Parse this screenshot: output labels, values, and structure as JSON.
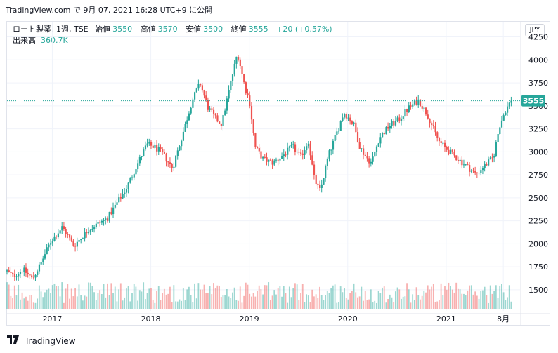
{
  "header": {
    "attribution": "TradingView.com で 9月 07, 2021 16:28 UTC+9 に公開"
  },
  "legend": {
    "symbol": "ロート製薬, 1週, TSE",
    "open_label": "始値",
    "open_value": "3550",
    "high_label": "高値",
    "high_value": "3570",
    "low_label": "安値",
    "low_value": "3500",
    "close_label": "終値",
    "close_value": "3555",
    "change": "+20 (+0.57%)",
    "volume_label": "出来高",
    "volume_value": "360.7K"
  },
  "currency": "JPY",
  "last_price_label": "3555",
  "footer": {
    "brand": "TradingView"
  },
  "colors": {
    "up": "#26a69a",
    "down": "#ef5350",
    "axis_text": "#131722",
    "grid": "#f0f3fa",
    "price_line": "#26a69a"
  },
  "chart_data": {
    "type": "candlestick",
    "interval": "weekly",
    "y_ticks": [
      4250,
      4000,
      3750,
      3500,
      3250,
      3000,
      2750,
      2500,
      2250,
      2000,
      1750,
      1500
    ],
    "ylim": [
      1270,
      4300
    ],
    "x_tick_labels": [
      "2017",
      "2018",
      "2019",
      "2020",
      "2021",
      "8月"
    ],
    "x_tick_positions": [
      0.0,
      1.0,
      2.0,
      3.0,
      4.0,
      4.58
    ],
    "x_range": [
      -0.46,
      4.75
    ],
    "last_price": 3555,
    "path_anchors": [
      [
        -0.46,
        1700
      ],
      [
        -0.4,
        1650
      ],
      [
        -0.3,
        1720
      ],
      [
        -0.2,
        1620
      ],
      [
        -0.12,
        1780
      ],
      [
        -0.02,
        2020
      ],
      [
        0.1,
        2180
      ],
      [
        0.22,
        1980
      ],
      [
        0.36,
        2150
      ],
      [
        0.56,
        2280
      ],
      [
        0.66,
        2450
      ],
      [
        0.76,
        2620
      ],
      [
        0.86,
        2860
      ],
      [
        0.96,
        3080
      ],
      [
        1.04,
        3050
      ],
      [
        1.12,
        2980
      ],
      [
        1.22,
        2820
      ],
      [
        1.32,
        3180
      ],
      [
        1.42,
        3560
      ],
      [
        1.5,
        3750
      ],
      [
        1.58,
        3480
      ],
      [
        1.66,
        3360
      ],
      [
        1.72,
        3300
      ],
      [
        1.8,
        3700
      ],
      [
        1.88,
        4080
      ],
      [
        1.96,
        3680
      ],
      [
        2.0,
        3560
      ],
      [
        2.06,
        3050
      ],
      [
        2.14,
        2920
      ],
      [
        2.24,
        2880
      ],
      [
        2.34,
        2960
      ],
      [
        2.44,
        3060
      ],
      [
        2.52,
        2940
      ],
      [
        2.6,
        3120
      ],
      [
        2.66,
        2700
      ],
      [
        2.72,
        2570
      ],
      [
        2.8,
        2950
      ],
      [
        2.9,
        3240
      ],
      [
        2.96,
        3430
      ],
      [
        3.06,
        3300
      ],
      [
        3.12,
        3060
      ],
      [
        3.18,
        2950
      ],
      [
        3.24,
        2880
      ],
      [
        3.32,
        3150
      ],
      [
        3.42,
        3280
      ],
      [
        3.52,
        3350
      ],
      [
        3.62,
        3480
      ],
      [
        3.72,
        3560
      ],
      [
        3.82,
        3380
      ],
      [
        3.92,
        3120
      ],
      [
        4.02,
        3010
      ],
      [
        4.1,
        2940
      ],
      [
        4.2,
        2850
      ],
      [
        4.3,
        2760
      ],
      [
        4.4,
        2860
      ],
      [
        4.48,
        2940
      ],
      [
        4.54,
        3280
      ],
      [
        4.6,
        3450
      ],
      [
        4.66,
        3555
      ]
    ],
    "volume_range_k": [
      100,
      600
    ]
  }
}
